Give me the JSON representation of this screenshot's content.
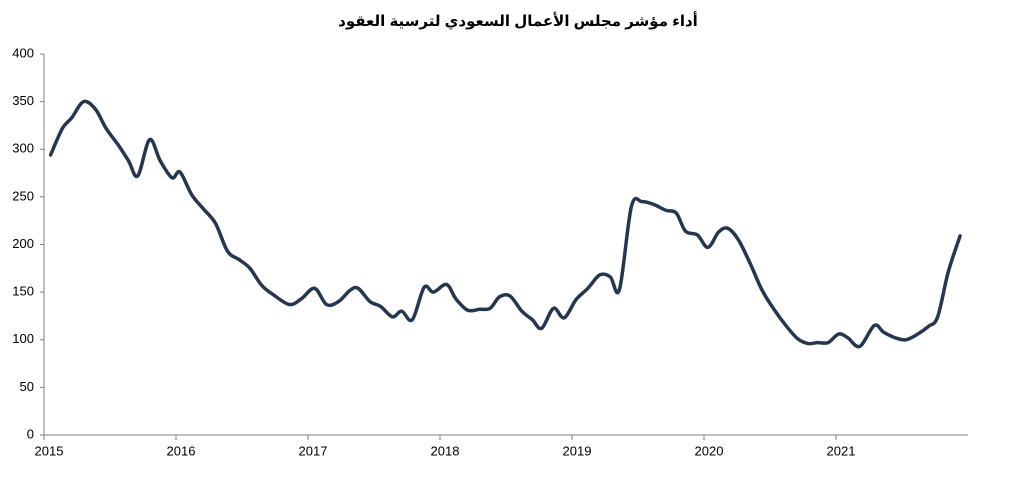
{
  "chart_data": {
    "type": "line",
    "title": "أداء مؤشر مجلس الأعمال السعودي لترسية العقود",
    "x": [
      2015.05,
      2015.14,
      2015.21,
      2015.3,
      2015.39,
      2015.47,
      2015.56,
      2015.64,
      2015.71,
      2015.8,
      2015.88,
      2015.97,
      2016.03,
      2016.12,
      2016.21,
      2016.3,
      2016.39,
      2016.48,
      2016.56,
      2016.65,
      2016.74,
      2016.86,
      2016.95,
      2017.05,
      2017.14,
      2017.23,
      2017.32,
      2017.38,
      2017.47,
      2017.55,
      2017.64,
      2017.71,
      2017.79,
      2017.88,
      2017.95,
      2018.05,
      2018.12,
      2018.21,
      2018.3,
      2018.38,
      2018.45,
      2018.53,
      2018.62,
      2018.7,
      2018.77,
      2018.86,
      2018.94,
      2019.03,
      2019.12,
      2019.21,
      2019.29,
      2019.36,
      2019.45,
      2019.53,
      2019.62,
      2019.71,
      2019.79,
      2019.86,
      2019.95,
      2020.03,
      2020.11,
      2020.18,
      2020.26,
      2020.35,
      2020.44,
      2020.53,
      2020.62,
      2020.71,
      2020.79,
      2020.86,
      2020.94,
      2021.02,
      2021.09,
      2021.18,
      2021.29,
      2021.36,
      2021.45,
      2021.53,
      2021.62,
      2021.7,
      2021.77,
      2021.85,
      2021.94
    ],
    "series": [
      {
        "color": "#253750",
        "values": [
          294,
          322,
          333,
          350,
          342,
          322,
          305,
          288,
          272,
          310,
          288,
          270,
          276,
          252,
          237,
          222,
          193,
          184,
          175,
          157,
          147,
          137,
          143,
          154,
          137,
          140,
          152,
          154,
          140,
          135,
          124,
          130,
          121,
          155,
          150,
          158,
          143,
          131,
          132,
          133,
          145,
          146,
          130,
          121,
          112,
          133,
          123,
          142,
          154,
          168,
          166,
          153,
          240,
          245,
          242,
          236,
          233,
          214,
          210,
          197,
          213,
          217,
          205,
          180,
          152,
          132,
          115,
          101,
          96,
          97,
          97,
          106,
          102,
          93,
          115,
          108,
          102,
          100,
          106,
          114,
          124,
          171,
          209
        ]
      }
    ],
    "xlim": [
      2015,
      2022
    ],
    "xticks": [
      2015,
      2016,
      2017,
      2018,
      2019,
      2020,
      2021
    ],
    "ylim": [
      0,
      400
    ],
    "yticks": [
      0,
      50,
      100,
      150,
      200,
      250,
      300,
      350,
      400
    ],
    "grid": false
  }
}
